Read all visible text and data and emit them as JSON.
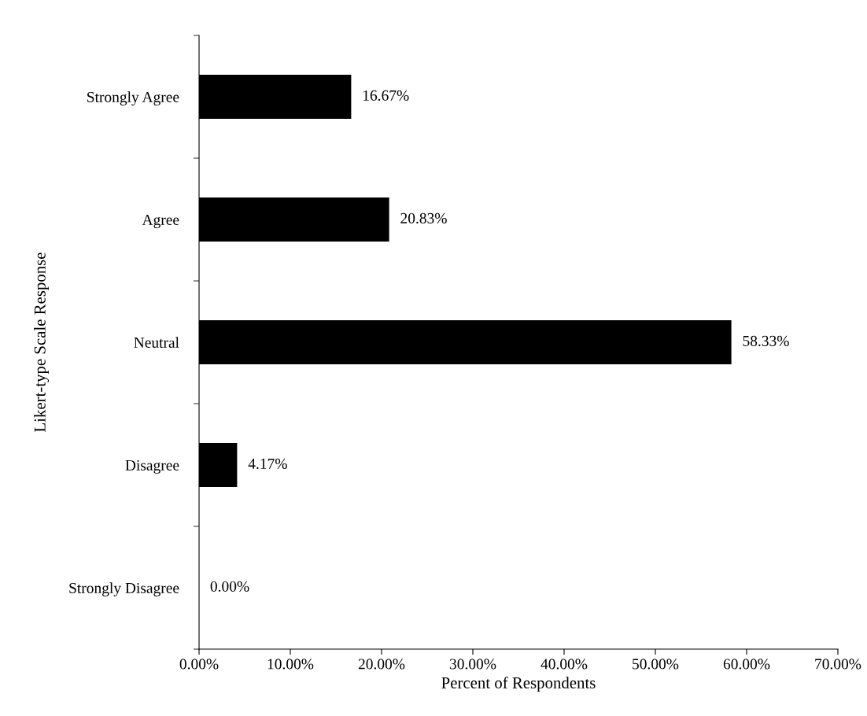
{
  "chart_data": {
    "type": "bar",
    "orientation": "horizontal",
    "xlabel": "Percent of Respondents",
    "ylabel": "Likert-type Scale Response",
    "categories": [
      "Strongly Agree",
      "Agree",
      "Neutral",
      "Disagree",
      "Strongly Disagree"
    ],
    "values": [
      16.67,
      20.83,
      58.33,
      4.17,
      0.0
    ],
    "value_labels": [
      "16.67%",
      "20.83%",
      "58.33%",
      "4.17%",
      "0.00%"
    ],
    "color": "#000000",
    "xlim": [
      0,
      70
    ],
    "xticks": [
      {
        "value": 0,
        "label": "0.00%"
      },
      {
        "value": 10,
        "label": "10.00%"
      },
      {
        "value": 20,
        "label": "20.00%"
      },
      {
        "value": 30,
        "label": "30.00%"
      },
      {
        "value": 40,
        "label": "40.00%"
      },
      {
        "value": 50,
        "label": "50.00%"
      },
      {
        "value": 60,
        "label": "60.00%"
      },
      {
        "value": 70,
        "label": "70.00%"
      }
    ],
    "grid": false,
    "legend": false
  }
}
